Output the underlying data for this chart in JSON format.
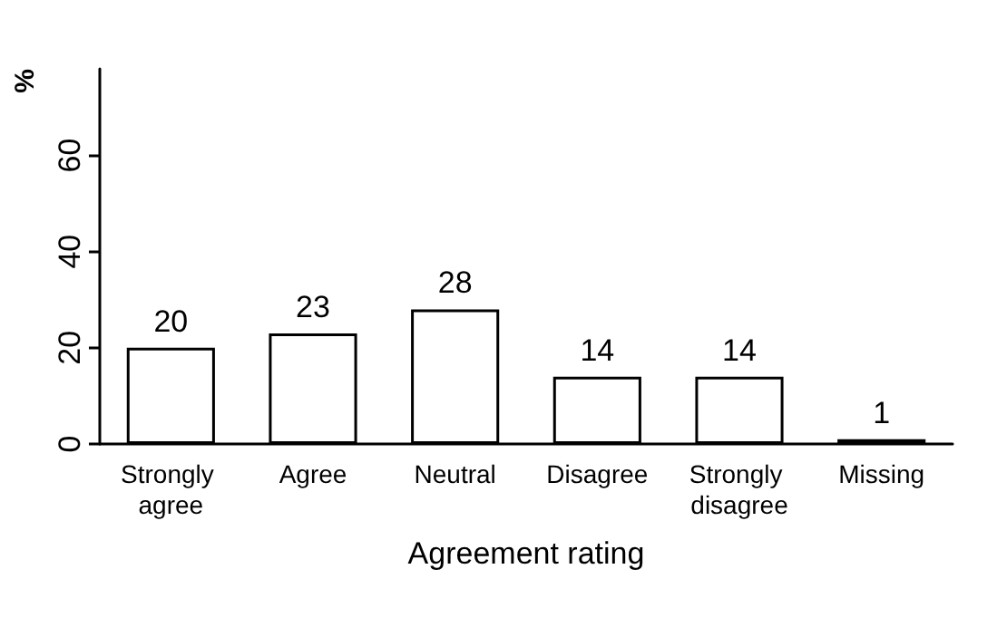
{
  "chart_data": {
    "type": "bar",
    "xlabel": "Agreement rating",
    "ylabel": "%",
    "categories": [
      "Strongly agree",
      "Agree",
      "Neutral",
      "Disagree",
      "Strongly disagree",
      "Missing"
    ],
    "values": [
      20,
      23,
      28,
      14,
      14,
      1
    ],
    "color": "#ffffff",
    "ylim": [
      0,
      78
    ],
    "yticks": [
      0,
      20,
      40,
      60
    ],
    "data_labels": true,
    "grid": false
  }
}
